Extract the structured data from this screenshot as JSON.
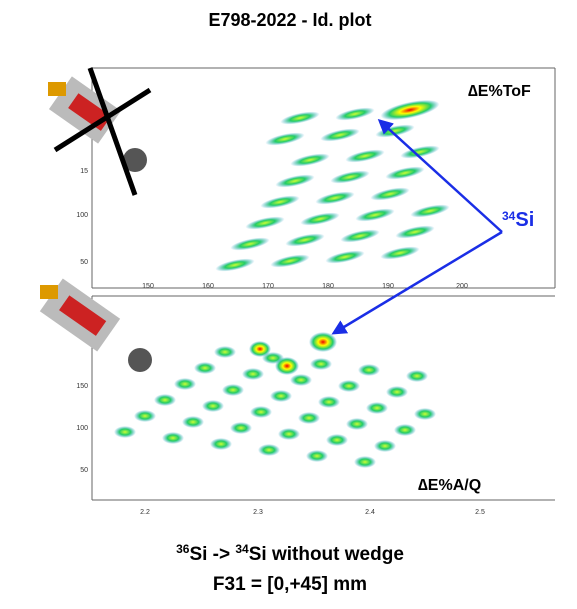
{
  "header": {
    "title": "E798-2022 - Id. plot"
  },
  "top_plot": {
    "label": "∆E%ToF",
    "y_tick_labels": [
      "15",
      100,
      50
    ],
    "x_tick_labels": [
      150,
      160,
      170,
      180,
      190,
      200
    ]
  },
  "bottom_plot": {
    "label": "∆E%A/Q",
    "y_tick_labels": [
      150,
      100,
      50
    ],
    "x_tick_labels": [
      2.2,
      2.3,
      2.4,
      2.5
    ]
  },
  "annotation": {
    "mass": "34",
    "symbol": "Si"
  },
  "footer": {
    "line1": {
      "mass_a": "36",
      "text_a": "Si -> ",
      "mass_b": "34",
      "text_b": "Si without wedge"
    },
    "line2": "F31 = [0,+45] mm"
  }
}
